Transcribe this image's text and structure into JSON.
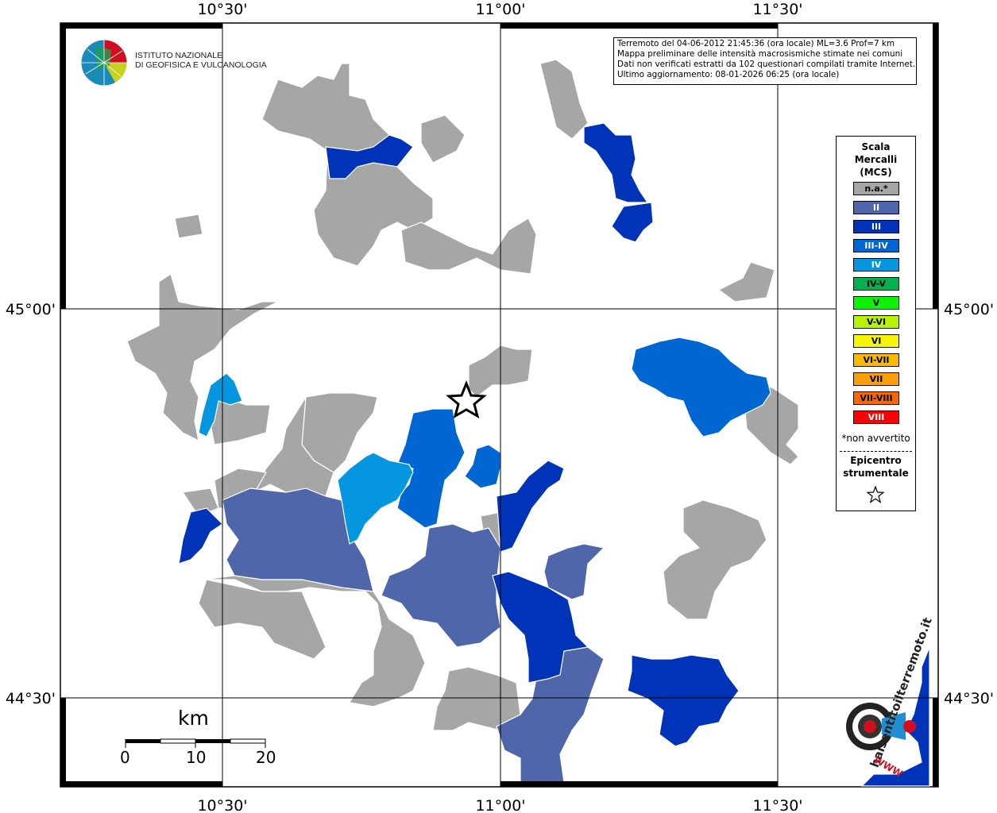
{
  "coords": {
    "top": [
      "10°30'",
      "11°00'",
      "11°30'"
    ],
    "bottom": [
      "10°30'",
      "11°00'",
      "11°30'"
    ],
    "left": [
      "45°00'",
      "44°30'"
    ],
    "right": [
      "45°00'",
      "44°30'"
    ]
  },
  "info_box": {
    "line1": "Terremoto del 04-06-2012 21:45:36 (ora locale) ML=3.6 Prof=7 km",
    "line2": "Mappa preliminare delle intensità macrosismiche stimate nei comuni",
    "line3": "Dati non verificati estratti da 102 questionari compilati tramite Internet.",
    "line4": "Ultimo aggiornamento: 08-01-2026 06:25 (ora locale)"
  },
  "logo": {
    "line1": "ISTITUTO NAZIONALE",
    "line2": "DI GEOFISICA E VULCANOLOGIA"
  },
  "legend": {
    "title1": "Scala",
    "title2": "Mercalli",
    "title3": "(MCS)",
    "items": [
      {
        "label": "n.a.*",
        "color": "#a6a6a6"
      },
      {
        "label": "II",
        "color": "#4f66ab"
      },
      {
        "label": "III",
        "color": "#0033b8"
      },
      {
        "label": "III-IV",
        "color": "#0066d1"
      },
      {
        "label": "IV",
        "color": "#0596e0"
      },
      {
        "label": "IV-V",
        "color": "#05b04f"
      },
      {
        "label": "V",
        "color": "#0ef207"
      },
      {
        "label": "V-VI",
        "color": "#b8f205"
      },
      {
        "label": "VI",
        "color": "#f5f505"
      },
      {
        "label": "VI-VII",
        "color": "#f5bb05"
      },
      {
        "label": "VII",
        "color": "#f7a00c"
      },
      {
        "label": "VII-VIII",
        "color": "#f56905"
      },
      {
        "label": "VIII",
        "color": "#f50505"
      }
    ],
    "note": "*non avvertito",
    "epicenter1": "Epicentro",
    "epicenter2": "strumentale"
  },
  "scalebar": {
    "unit": "km",
    "labels": [
      "0",
      "10",
      "20"
    ]
  },
  "haisentito_logo": {
    "text": "haisentitoilterremoto.it",
    "www": "WWW"
  }
}
